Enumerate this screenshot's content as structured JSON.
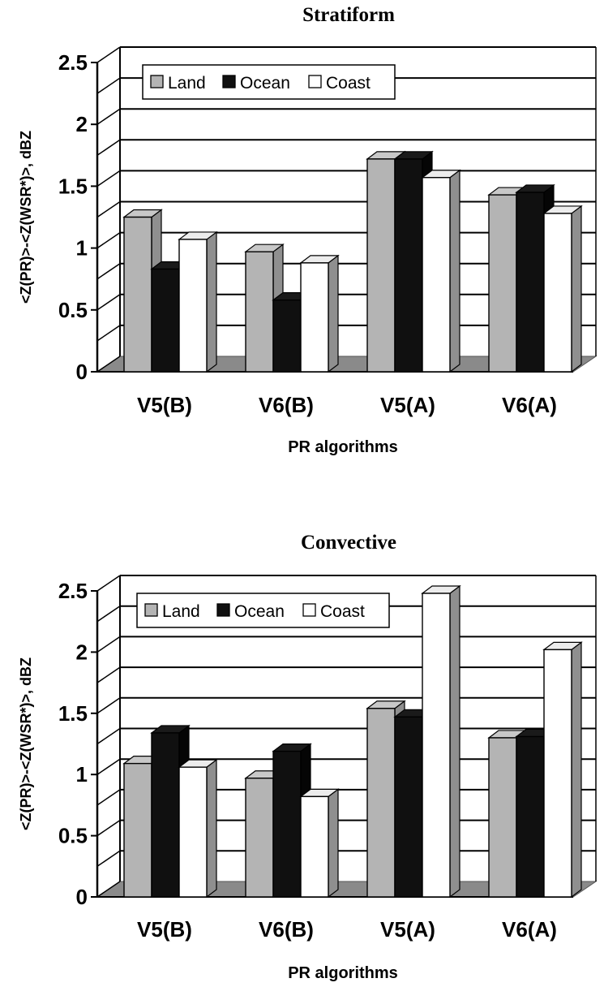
{
  "colors": {
    "land": "#b4b4b4",
    "ocean": "#101010",
    "coast": "#ffffff",
    "floor": "#8a8a8a",
    "wall_side": "#d0d0d0",
    "grid": "#000000"
  },
  "chart_data": [
    {
      "type": "bar",
      "title": "Stratiform",
      "xlabel": "PR algorithms",
      "ylabel": "<Z(PR)>-<Z(WSR*)>, dBZ",
      "ylim": [
        0,
        2.5
      ],
      "yticks": [
        "0",
        "0.5",
        "1",
        "1.5",
        "2",
        "2.5"
      ],
      "grid": true,
      "legend_position": "top-left",
      "categories": [
        "V5(B)",
        "V6(B)",
        "V5(A)",
        "V6(A)"
      ],
      "series": [
        {
          "name": "Land",
          "color_key": "land",
          "values": [
            1.25,
            0.97,
            1.72,
            1.43
          ]
        },
        {
          "name": "Ocean",
          "color_key": "ocean",
          "values": [
            0.83,
            0.58,
            1.72,
            1.45
          ]
        },
        {
          "name": "Coast",
          "color_key": "coast",
          "values": [
            1.07,
            0.88,
            1.57,
            1.28
          ]
        }
      ]
    },
    {
      "type": "bar",
      "title": "Convective",
      "xlabel": "PR algorithms",
      "ylabel": "<Z(PR)>-<Z(WSR*)>, dBZ",
      "ylim": [
        0,
        2.5
      ],
      "yticks": [
        "0",
        "0.5",
        "1",
        "1.5",
        "2",
        "2.5"
      ],
      "grid": true,
      "legend_position": "top-left",
      "categories": [
        "V5(B)",
        "V6(B)",
        "V5(A)",
        "V6(A)"
      ],
      "series": [
        {
          "name": "Land",
          "color_key": "land",
          "values": [
            1.09,
            0.97,
            1.54,
            1.3
          ]
        },
        {
          "name": "Ocean",
          "color_key": "ocean",
          "values": [
            1.34,
            1.19,
            1.47,
            1.31
          ]
        },
        {
          "name": "Coast",
          "color_key": "coast",
          "values": [
            1.06,
            0.82,
            2.48,
            2.02
          ]
        }
      ]
    }
  ]
}
